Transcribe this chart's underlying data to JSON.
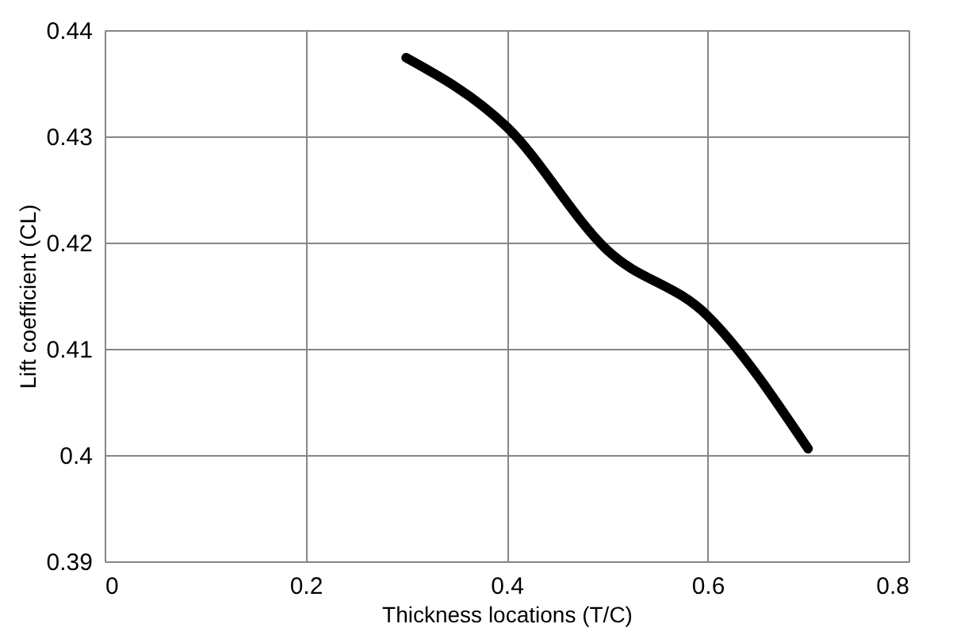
{
  "chart_data": {
    "type": "line",
    "xlabel": "Thickness locations  (T/C)",
    "ylabel": "Lift coefficient (CL)",
    "x": [
      0.3,
      0.4,
      0.5,
      0.6,
      0.7
    ],
    "series": [
      {
        "color": "#000000",
        "values": [
          0.4374,
          0.4309,
          0.4193,
          0.4131,
          0.4006
        ]
      }
    ],
    "xlim": [
      0,
      0.8
    ],
    "xticks": [
      0,
      0.2,
      0.4,
      0.6,
      0.8
    ],
    "ylim": [
      0.39,
      0.44
    ],
    "yticks": [
      0.39,
      0.4,
      0.41,
      0.42,
      0.43,
      0.44
    ],
    "grid": true,
    "marker": "none",
    "line_style": "solid"
  }
}
